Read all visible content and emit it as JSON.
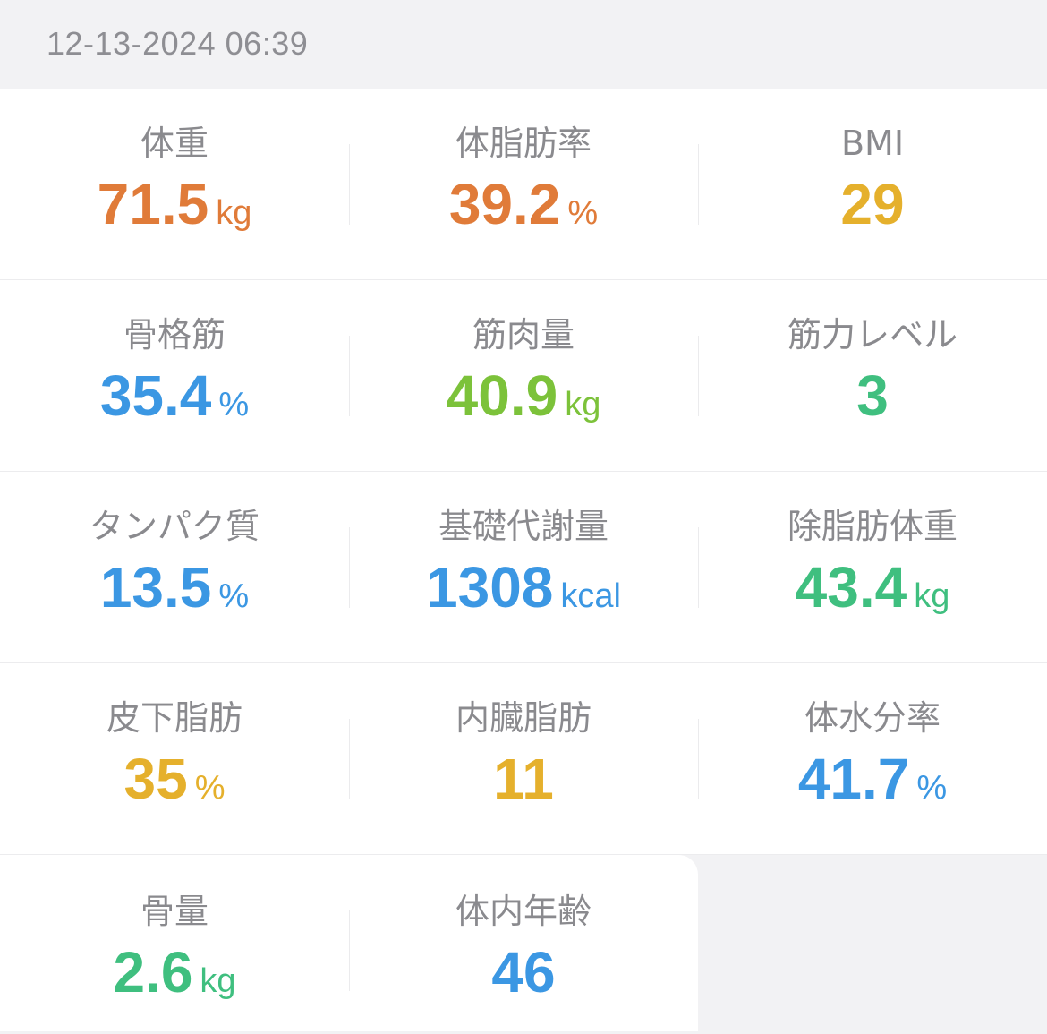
{
  "header": {
    "timestamp": "12-13-2024 06:39"
  },
  "metrics": [
    {
      "label": "体重",
      "value": "71.5",
      "unit": "kg",
      "color": "#e07b39"
    },
    {
      "label": "体脂肪率",
      "value": "39.2",
      "unit": "%",
      "color": "#e07b39"
    },
    {
      "label": "BMI",
      "value": "29",
      "unit": "",
      "color": "#e5b02c"
    },
    {
      "label": "骨格筋",
      "value": "35.4",
      "unit": "%",
      "color": "#3b97e3"
    },
    {
      "label": "筋肉量",
      "value": "40.9",
      "unit": "kg",
      "color": "#7cc23a"
    },
    {
      "label": "筋力レベル",
      "value": "3",
      "unit": "",
      "color": "#3fbf7f"
    },
    {
      "label": "タンパク質",
      "value": "13.5",
      "unit": "%",
      "color": "#3b97e3"
    },
    {
      "label": "基礎代謝量",
      "value": "1308",
      "unit": "kcal",
      "color": "#3b97e3"
    },
    {
      "label": "除脂肪体重",
      "value": "43.4",
      "unit": "kg",
      "color": "#3fbf7f"
    },
    {
      "label": "皮下脂肪",
      "value": "35",
      "unit": "%",
      "color": "#e5b02c"
    },
    {
      "label": "内臓脂肪",
      "value": "11",
      "unit": "",
      "color": "#e5b02c"
    },
    {
      "label": "体水分率",
      "value": "41.7",
      "unit": "%",
      "color": "#3b97e3"
    },
    {
      "label": "骨量",
      "value": "2.6",
      "unit": "kg",
      "color": "#3fbf7f"
    },
    {
      "label": "体内年齢",
      "value": "46",
      "unit": "",
      "color": "#3b97e3"
    }
  ]
}
